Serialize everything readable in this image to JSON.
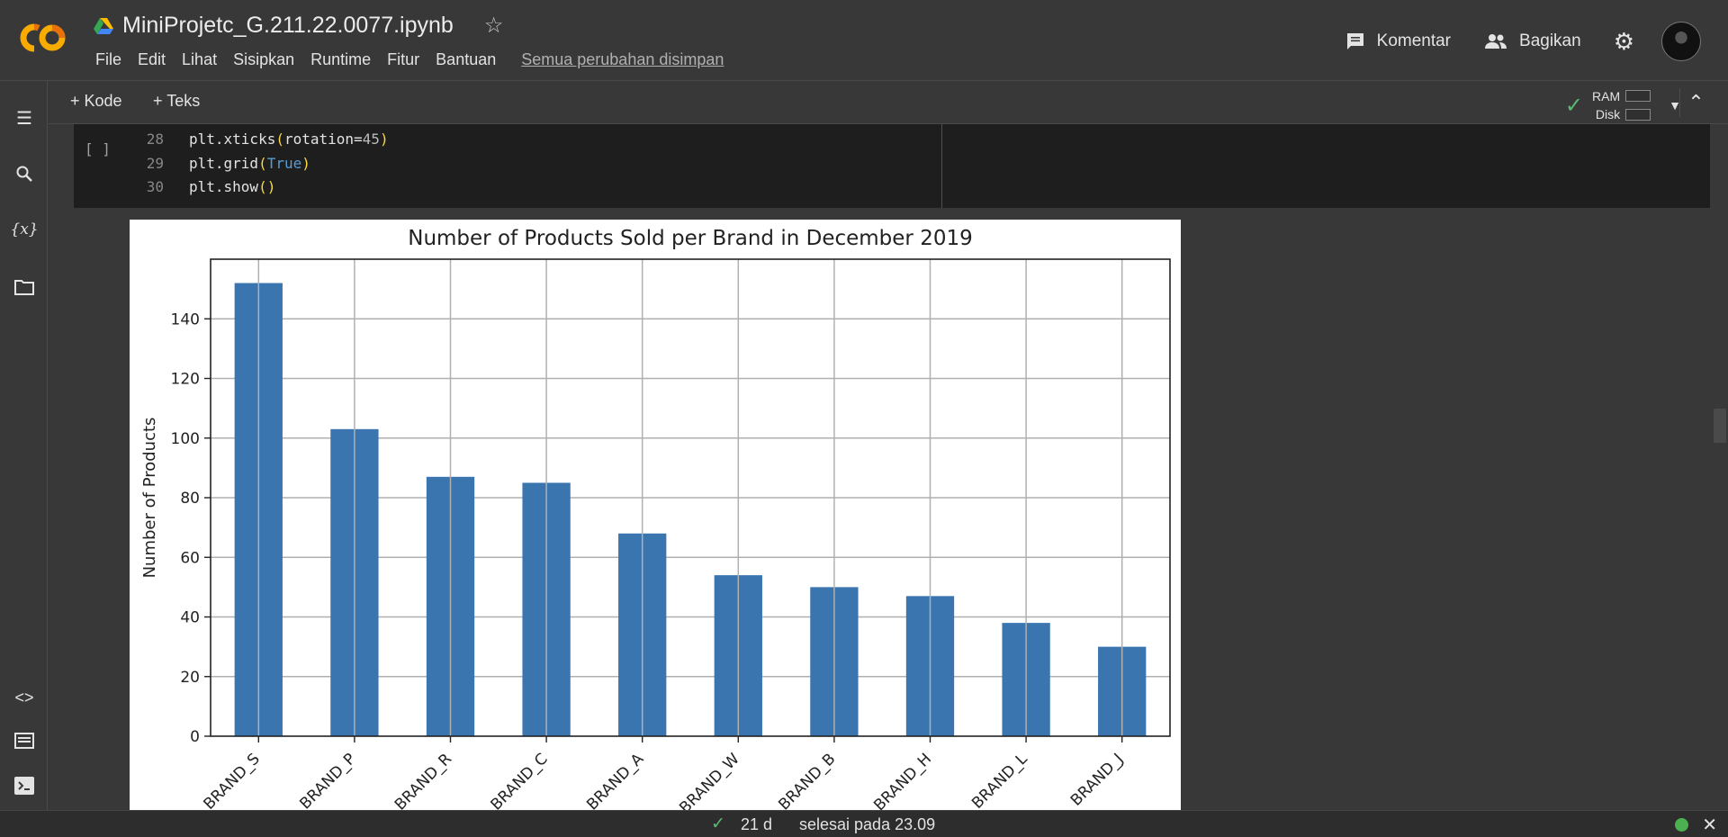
{
  "header": {
    "title": "MiniProjetc_G.211.22.0077.ipynb",
    "menu": [
      "File",
      "Edit",
      "Lihat",
      "Sisipkan",
      "Runtime",
      "Fitur",
      "Bantuan"
    ],
    "saved_status": "Semua perubahan disimpan",
    "comment_label": "Komentar",
    "share_label": "Bagikan"
  },
  "toolbar": {
    "add_code": "+ Kode",
    "add_text": "+ Teks",
    "ram_label": "RAM",
    "disk_label": "Disk"
  },
  "cell": {
    "exec_marker": "[ ]",
    "lines": [
      {
        "num": "28",
        "tokens": [
          [
            "n",
            "plt.xticks"
          ],
          [
            "p",
            "("
          ],
          [
            "n",
            "rotation"
          ],
          [
            "n",
            "="
          ],
          [
            "num",
            "45"
          ],
          [
            "p",
            ")"
          ]
        ]
      },
      {
        "num": "29",
        "tokens": [
          [
            "n",
            "plt.grid"
          ],
          [
            "p",
            "("
          ],
          [
            "k",
            "True"
          ],
          [
            "p",
            ")"
          ]
        ]
      },
      {
        "num": "30",
        "tokens": [
          [
            "n",
            "plt.show"
          ],
          [
            "p",
            "()"
          ]
        ]
      }
    ]
  },
  "chart_data": {
    "type": "bar",
    "title": "Number of Products Sold per Brand in December 2019",
    "xlabel": "",
    "ylabel": "Number of Products",
    "categories": [
      "BRAND_S",
      "BRAND_P",
      "BRAND_R",
      "BRAND_C",
      "BRAND_A",
      "BRAND_W",
      "BRAND_B",
      "BRAND_H",
      "BRAND_L",
      "BRAND_J"
    ],
    "values": [
      152,
      103,
      87,
      85,
      68,
      54,
      50,
      47,
      38,
      30
    ],
    "ylim": [
      0,
      160
    ],
    "yticks": [
      0,
      20,
      40,
      60,
      80,
      100,
      120,
      140
    ],
    "grid": true,
    "xtick_rotation": 45,
    "bar_color": "#3a75b0"
  },
  "status": {
    "elapsed": "21 d",
    "done": "selesai pada 23.09"
  },
  "colors": {
    "accent_orange": "#f9ab00",
    "ok_green": "#5bb974"
  }
}
